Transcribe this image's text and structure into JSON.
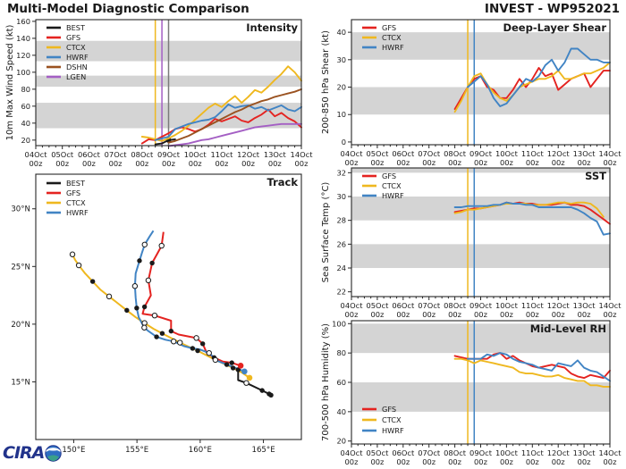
{
  "header": {
    "main_title": "Multi-Model Diagnostic Comparison",
    "invest_title": "INVEST - WP952021"
  },
  "logo": {
    "text": "CIRA"
  },
  "colors": {
    "BEST": "#1a1a1a",
    "GFS": "#e42320",
    "CTCX": "#efb81f",
    "HWRF": "#4184c4",
    "DSHN": "#9a5220",
    "LGEN": "#a45fc4",
    "band": "#d4d4d4",
    "gray_vline": "#7a7a7a",
    "spine": "#262626",
    "text": "#1a1a1a"
  },
  "xaxis": {
    "day_labels": [
      "04Oct",
      "05Oct",
      "06Oct",
      "07Oct",
      "08Oct",
      "09Oct",
      "10Oct",
      "11Oct",
      "12Oct",
      "13Oct",
      "14Oct"
    ],
    "sub_label": "00z",
    "total_hours": 240,
    "major_step_hours": 24,
    "minor_step_hours": 6
  },
  "chart_data": [
    {
      "id": "intensity",
      "type": "line",
      "title": "Intensity",
      "ylabel": "10m Max Wind Speed (kt)",
      "ylim": [
        13.5,
        162
      ],
      "yticks": [
        20,
        40,
        60,
        80,
        100,
        120,
        140,
        160
      ],
      "bands": [
        [
          34,
          64
        ],
        [
          83,
          96
        ],
        [
          113,
          137
        ]
      ],
      "legend_pos": "top-left",
      "vlines": [
        {
          "color_key": "CTCX",
          "hour": 108
        },
        {
          "color_key": "LGEN",
          "hour": 114
        },
        {
          "color_key": "gray_vline",
          "hour": 120
        }
      ],
      "series": [
        {
          "name": "BEST",
          "start_hour": 108,
          "step": 6,
          "dot": [
            120,
            20
          ],
          "values": [
            15,
            16,
            20,
            21
          ]
        },
        {
          "name": "GFS",
          "start_hour": 96,
          "step": 6,
          "values": [
            16,
            21,
            20,
            24,
            28,
            33,
            35,
            33,
            30,
            33,
            38,
            45,
            42,
            45,
            48,
            43,
            41,
            46,
            50,
            56,
            48,
            52,
            46,
            42,
            35
          ]
        },
        {
          "name": "CTCX",
          "start_hour": 96,
          "step": 6,
          "values": [
            24,
            23,
            21,
            19,
            22,
            26,
            31,
            37,
            44,
            51,
            58,
            63,
            59,
            66,
            72,
            64,
            71,
            79,
            76,
            83,
            91,
            98,
            107,
            100,
            90
          ]
        },
        {
          "name": "HWRF",
          "start_hour": 108,
          "step": 6,
          "values": [
            20,
            22,
            24,
            33,
            36,
            39,
            41,
            43,
            44,
            47,
            54,
            62,
            58,
            60,
            61,
            57,
            59,
            55,
            58,
            61,
            56,
            54,
            59
          ]
        },
        {
          "name": "DSHN",
          "start_hour": 120,
          "step": 6,
          "values": [
            17,
            19,
            22,
            25,
            29,
            33,
            37,
            41,
            45,
            49,
            53,
            56,
            60,
            63,
            66,
            68,
            71,
            73,
            75,
            77,
            80
          ]
        },
        {
          "name": "LGEN",
          "start_hour": 120,
          "step": 6,
          "values": [
            13,
            14,
            15,
            16,
            18,
            20,
            21,
            23,
            25,
            27,
            29,
            31,
            33,
            35,
            36,
            37,
            38,
            39,
            39,
            39,
            39
          ]
        }
      ]
    },
    {
      "id": "shear",
      "type": "line",
      "title": "Deep-Layer Shear",
      "ylabel": "200-850 hPa Shear (kt)",
      "ylim": [
        -1,
        44.6
      ],
      "yticks": [
        0,
        10,
        20,
        30,
        40
      ],
      "bands": [
        [
          10,
          20
        ],
        [
          30,
          40
        ]
      ],
      "legend_pos": "top-left",
      "vlines": [
        {
          "color_key": "CTCX",
          "hour": 108
        },
        {
          "color_key": "HWRF",
          "hour": 114
        }
      ],
      "series": [
        {
          "name": "GFS",
          "start_hour": 96,
          "step": 6,
          "values": [
            12,
            16,
            20,
            23,
            24,
            20,
            19,
            16,
            16,
            19,
            23,
            20,
            23,
            27,
            24,
            25,
            19,
            21,
            23,
            24,
            25,
            20,
            23,
            26,
            26
          ]
        },
        {
          "name": "CTCX",
          "start_hour": 96,
          "step": 6,
          "values": [
            11,
            15,
            20,
            24,
            25,
            21,
            18,
            16,
            15,
            17,
            20,
            21,
            22,
            23,
            23,
            24,
            26,
            23,
            23,
            24,
            25,
            25,
            26,
            27,
            29
          ]
        },
        {
          "name": "HWRF",
          "start_hour": 108,
          "step": 6,
          "values": [
            20,
            22,
            24,
            21,
            16,
            13,
            14,
            17,
            20,
            23,
            22,
            24,
            28,
            30,
            26,
            29,
            34,
            34,
            32,
            30,
            30,
            29,
            29
          ]
        }
      ]
    },
    {
      "id": "sst",
      "type": "line",
      "title": "SST",
      "ylabel": "Sea Surface Temp (°C)",
      "ylim": [
        21.6,
        32.4
      ],
      "yticks": [
        22,
        24,
        26,
        28,
        30,
        32
      ],
      "bands": [
        [
          24,
          26
        ],
        [
          28,
          30
        ],
        [
          32,
          32.4
        ]
      ],
      "legend_pos": "top-left",
      "vlines": [
        {
          "color_key": "CTCX",
          "hour": 108
        },
        {
          "color_key": "HWRF",
          "hour": 114
        }
      ],
      "series": [
        {
          "name": "GFS",
          "start_hour": 96,
          "step": 6,
          "values": [
            28.7,
            28.8,
            28.9,
            29.0,
            29.0,
            29.1,
            29.2,
            29.3,
            29.5,
            29.4,
            29.5,
            29.4,
            29.4,
            29.3,
            29.3,
            29.3,
            29.4,
            29.5,
            29.3,
            29.3,
            29.2,
            28.9,
            28.5,
            28.1,
            27.7
          ]
        },
        {
          "name": "CTCX",
          "start_hour": 96,
          "step": 6,
          "values": [
            28.6,
            28.7,
            28.9,
            28.9,
            29.0,
            29.1,
            29.2,
            29.3,
            29.4,
            29.4,
            29.4,
            29.4,
            29.3,
            29.3,
            29.3,
            29.4,
            29.5,
            29.5,
            29.4,
            29.5,
            29.5,
            29.4,
            29.0,
            28.3,
            null
          ]
        },
        {
          "name": "HWRF",
          "start_hour": 96,
          "step": 6,
          "values": [
            29.1,
            29.1,
            29.2,
            29.2,
            29.2,
            29.2,
            29.3,
            29.3,
            29.5,
            29.4,
            29.4,
            29.3,
            29.3,
            29.1,
            29.1,
            29.1,
            29.1,
            29.1,
            29.1,
            28.9,
            28.6,
            28.2,
            27.9,
            26.8,
            26.9
          ]
        }
      ]
    },
    {
      "id": "rh",
      "type": "line",
      "title": "Mid-Level RH",
      "ylabel": "700-500 hPa Humidity (%)",
      "ylim": [
        18,
        102
      ],
      "yticks": [
        20,
        40,
        60,
        80,
        100
      ],
      "bands": [
        [
          40,
          60
        ],
        [
          80,
          100
        ]
      ],
      "legend_pos": "bottom-left",
      "vlines": [
        {
          "color_key": "CTCX",
          "hour": 108
        },
        {
          "color_key": "HWRF",
          "hour": 114
        }
      ],
      "series": [
        {
          "name": "GFS",
          "start_hour": 96,
          "step": 6,
          "values": [
            78,
            77,
            76,
            76,
            76,
            76,
            79,
            80,
            76,
            78,
            75,
            73,
            71,
            70,
            71,
            72,
            71,
            70,
            66,
            64,
            63,
            65,
            64,
            63,
            68
          ]
        },
        {
          "name": "CTCX",
          "start_hour": 96,
          "step": 6,
          "values": [
            76,
            76,
            75,
            73,
            75,
            74,
            73,
            72,
            71,
            70,
            67,
            66,
            66,
            65,
            64,
            64,
            65,
            63,
            62,
            61,
            61,
            58,
            58,
            57,
            57
          ]
        },
        {
          "name": "HWRF",
          "start_hour": 108,
          "step": 6,
          "values": [
            76,
            76,
            76,
            79,
            78,
            80,
            79,
            76,
            74,
            73,
            72,
            70,
            69,
            68,
            73,
            72,
            71,
            75,
            70,
            68,
            67,
            64,
            61
          ]
        }
      ]
    },
    {
      "id": "track",
      "type": "track",
      "title": "Track",
      "xlim": [
        147,
        168
      ],
      "ylim": [
        10,
        33
      ],
      "xticks": [
        150,
        155,
        160,
        165
      ],
      "yticks": [
        15,
        20,
        25,
        30
      ],
      "xtick_suffix": "°E",
      "ytick_suffix": "°N",
      "legend": [
        "BEST",
        "GFS",
        "CTCX",
        "HWRF"
      ],
      "tracks": [
        {
          "name": "BEST",
          "points": [
            [
              165.6,
              13.85,
              2
            ],
            [
              165.45,
              13.95,
              2
            ],
            [
              164.9,
              14.25,
              2
            ],
            [
              163.65,
              14.9,
              1
            ],
            [
              163.0,
              15.15,
              0
            ],
            [
              163.0,
              16.05,
              2
            ]
          ]
        },
        {
          "name": "GFS",
          "points": [
            [
              163.2,
              16.4,
              3
            ],
            [
              162.5,
              16.65,
              2
            ],
            [
              161.8,
              16.75,
              0
            ],
            [
              161.1,
              17.1,
              2
            ],
            [
              160.5,
              17.55,
              0
            ],
            [
              160.2,
              18.3,
              2
            ],
            [
              159.7,
              18.8,
              1
            ],
            [
              158.3,
              19.1,
              0
            ],
            [
              157.7,
              19.4,
              2
            ],
            [
              157.7,
              20.3,
              0
            ],
            [
              156.4,
              20.75,
              1
            ],
            [
              155.45,
              20.9,
              0
            ],
            [
              155.6,
              21.5,
              2
            ],
            [
              156.1,
              22.5,
              0
            ],
            [
              155.9,
              23.8,
              1
            ],
            [
              156.2,
              25.3,
              2
            ],
            [
              156.6,
              26.1,
              0
            ],
            [
              156.95,
              26.8,
              1
            ],
            [
              157.1,
              28.0,
              0
            ]
          ]
        },
        {
          "name": "CTCX",
          "points": [
            [
              163.9,
              15.35,
              3
            ],
            [
              163.3,
              15.8,
              0
            ],
            [
              162.6,
              16.2,
              2
            ],
            [
              161.9,
              16.55,
              0
            ],
            [
              161.2,
              16.9,
              1
            ],
            [
              160.5,
              17.3,
              0
            ],
            [
              159.8,
              17.7,
              2
            ],
            [
              159.1,
              18.05,
              0
            ],
            [
              158.4,
              18.4,
              1
            ],
            [
              157.7,
              18.8,
              0
            ],
            [
              157.0,
              19.2,
              2
            ],
            [
              156.3,
              19.6,
              0
            ],
            [
              155.6,
              20.1,
              1
            ],
            [
              154.9,
              20.6,
              0
            ],
            [
              154.2,
              21.2,
              2
            ],
            [
              153.5,
              21.8,
              0
            ],
            [
              152.8,
              22.4,
              1
            ],
            [
              152.1,
              23.0,
              0
            ],
            [
              151.5,
              23.7,
              2
            ],
            [
              150.9,
              24.4,
              0
            ],
            [
              150.4,
              25.1,
              1
            ],
            [
              150.1,
              25.6,
              0
            ],
            [
              149.9,
              26.05,
              1
            ]
          ]
        },
        {
          "name": "HWRF",
          "points": [
            [
              163.5,
              15.9,
              3
            ],
            [
              162.8,
              16.2,
              0
            ],
            [
              162.1,
              16.5,
              2
            ],
            [
              161.4,
              16.8,
              0
            ],
            [
              160.7,
              17.5,
              1
            ],
            [
              160.0,
              17.8,
              0
            ],
            [
              159.4,
              17.9,
              2
            ],
            [
              158.7,
              18.1,
              0
            ],
            [
              157.9,
              18.5,
              1
            ],
            [
              157.25,
              18.65,
              0
            ],
            [
              156.55,
              18.9,
              2
            ],
            [
              155.9,
              19.4,
              0
            ],
            [
              155.58,
              19.7,
              1
            ],
            [
              155.14,
              20.6,
              0
            ],
            [
              154.98,
              21.4,
              2
            ],
            [
              154.9,
              22.3,
              0
            ],
            [
              154.84,
              23.3,
              1
            ],
            [
              154.9,
              24.4,
              0
            ],
            [
              155.2,
              25.5,
              2
            ],
            [
              155.4,
              26.2,
              0
            ],
            [
              155.61,
              26.9,
              1
            ],
            [
              156.0,
              27.6,
              0
            ],
            [
              156.3,
              28.1,
              0
            ]
          ]
        }
      ]
    }
  ]
}
